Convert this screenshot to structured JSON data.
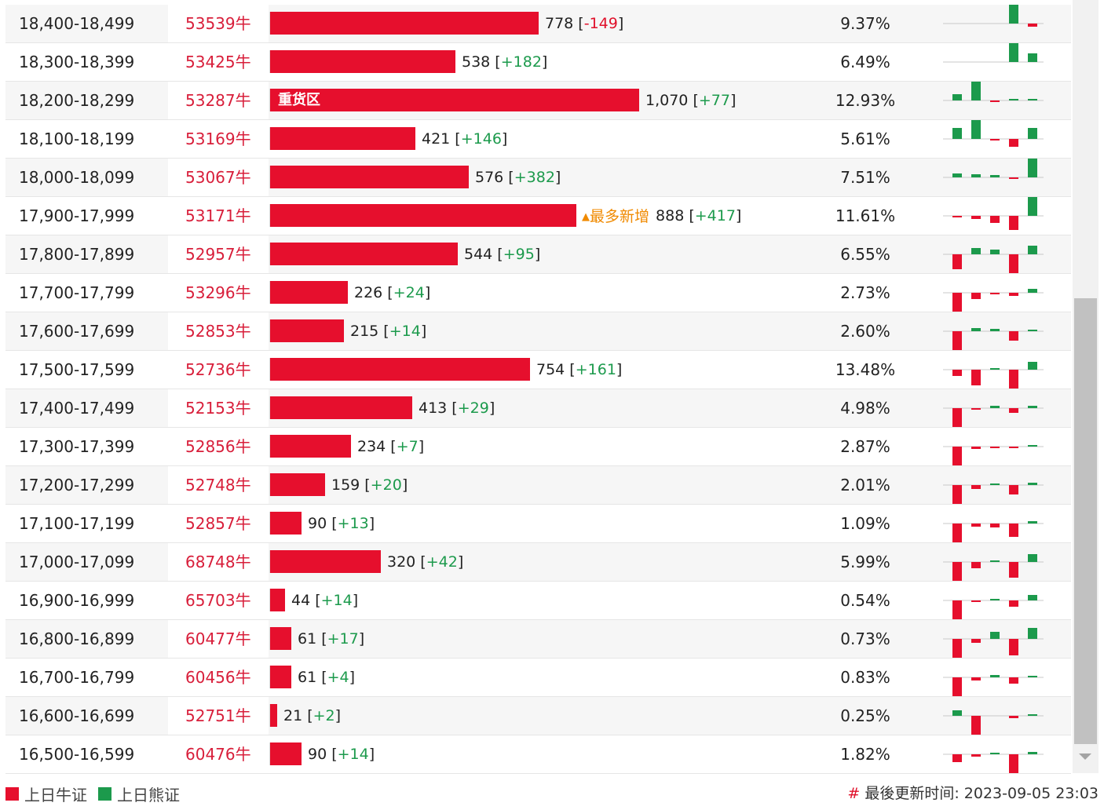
{
  "colors": {
    "bull": "#e60f2d",
    "bear": "#1c9a4c",
    "highlight": "#f08a00"
  },
  "rows": [
    {
      "range": "18,400-18,499",
      "bull": "53539牛",
      "value": 778,
      "value_text": "778",
      "change": "-149",
      "pct": "9.37%",
      "spark": [
        0,
        0,
        0,
        0,
        24,
        -4
      ]
    },
    {
      "range": "18,300-18,399",
      "bull": "53425牛",
      "value": 538,
      "value_text": "538",
      "change": "+182",
      "pct": "6.49%",
      "spark": [
        0,
        0,
        0,
        0,
        24,
        11
      ]
    },
    {
      "range": "18,200-18,299",
      "bull": "53287牛",
      "value": 1070,
      "value_text": "1,070",
      "change": "+77",
      "pct": "12.93%",
      "label": "重货区",
      "spark": [
        8,
        24,
        -2,
        -6,
        2,
        2
      ]
    },
    {
      "range": "18,100-18,199",
      "bull": "53169牛",
      "value": 421,
      "value_text": "421",
      "change": "+146",
      "pct": "5.61%",
      "spark": [
        14,
        24,
        -2,
        -10,
        0,
        14
      ]
    },
    {
      "range": "18,000-18,099",
      "bull": "53067牛",
      "value": 576,
      "value_text": "576",
      "change": "+382",
      "pct": "7.51%",
      "spark": [
        5,
        4,
        3,
        -1,
        0,
        24
      ]
    },
    {
      "range": "17,900-17,999",
      "bull": "53171牛",
      "value": 888,
      "value_text": "888",
      "change": "+417",
      "pct": "11.61%",
      "tag": "最多新增",
      "spark": [
        -2,
        -4,
        -9,
        -18,
        0,
        24
      ]
    },
    {
      "range": "17,800-17,899",
      "bull": "52957牛",
      "value": 544,
      "value_text": "544",
      "change": "+95",
      "pct": "6.55%",
      "spark": [
        -19,
        8,
        6,
        -25,
        0,
        11
      ]
    },
    {
      "range": "17,700-17,799",
      "bull": "53296牛",
      "value": 226,
      "value_text": "226",
      "change": "+24",
      "pct": "2.73%",
      "spark": [
        -24,
        -8,
        -2,
        -4,
        0,
        5
      ]
    },
    {
      "range": "17,600-17,699",
      "bull": "52853牛",
      "value": 215,
      "value_text": "215",
      "change": "+14",
      "pct": "2.60%",
      "spark": [
        -24,
        4,
        3,
        -12,
        0,
        2
      ]
    },
    {
      "range": "17,500-17,599",
      "bull": "52736牛",
      "value": 754,
      "value_text": "754",
      "change": "+161",
      "pct": "13.48%",
      "spark": [
        -8,
        -20,
        2,
        -24,
        0,
        10
      ]
    },
    {
      "range": "17,400-17,499",
      "bull": "52153牛",
      "value": 413,
      "value_text": "413",
      "change": "+29",
      "pct": "4.98%",
      "spark": [
        -24,
        -2,
        3,
        -6,
        0,
        3
      ]
    },
    {
      "range": "17,300-17,399",
      "bull": "52856牛",
      "value": 234,
      "value_text": "234",
      "change": "+7",
      "pct": "2.87%",
      "spark": [
        -24,
        -3,
        -2,
        -2,
        0,
        2
      ]
    },
    {
      "range": "17,200-17,299",
      "bull": "52748牛",
      "value": 159,
      "value_text": "159",
      "change": "+20",
      "pct": "2.01%",
      "spark": [
        -24,
        -5,
        1,
        -12,
        0,
        3
      ]
    },
    {
      "range": "17,100-17,199",
      "bull": "52857牛",
      "value": 90,
      "value_text": "90",
      "change": "+13",
      "pct": "1.09%",
      "spark": [
        -24,
        -4,
        -5,
        -17,
        0,
        3
      ]
    },
    {
      "range": "17,000-17,099",
      "bull": "68748牛",
      "value": 320,
      "value_text": "320",
      "change": "+42",
      "pct": "5.99%",
      "spark": [
        -24,
        -8,
        2,
        -20,
        0,
        10
      ]
    },
    {
      "range": "16,900-16,999",
      "bull": "65703牛",
      "value": 44,
      "value_text": "44",
      "change": "+14",
      "pct": "0.54%",
      "spark": [
        -24,
        -2,
        2,
        -8,
        0,
        7
      ]
    },
    {
      "range": "16,800-16,899",
      "bull": "60477牛",
      "value": 61,
      "value_text": "61",
      "change": "+17",
      "pct": "0.73%",
      "spark": [
        -24,
        -5,
        9,
        -21,
        0,
        14
      ]
    },
    {
      "range": "16,700-16,799",
      "bull": "60456牛",
      "value": 61,
      "value_text": "61",
      "change": "+4",
      "pct": "0.83%",
      "spark": [
        -24,
        -4,
        3,
        -8,
        0,
        2
      ]
    },
    {
      "range": "16,600-16,699",
      "bull": "52751牛",
      "value": 21,
      "value_text": "21",
      "change": "+2",
      "pct": "0.25%",
      "spark": [
        7,
        -24,
        0,
        -3,
        0,
        1
      ]
    },
    {
      "range": "16,500-16,599",
      "bull": "60476牛",
      "value": 90,
      "value_text": "90",
      "change": "+14",
      "pct": "1.82%",
      "spark": [
        -10,
        -3,
        2,
        -24,
        0,
        3
      ]
    }
  ],
  "legend": {
    "bull": "上日牛证",
    "bear": "上日熊证"
  },
  "updated": {
    "hash": "#",
    "label": "最後更新时间: 2023-09-05 23:03"
  }
}
